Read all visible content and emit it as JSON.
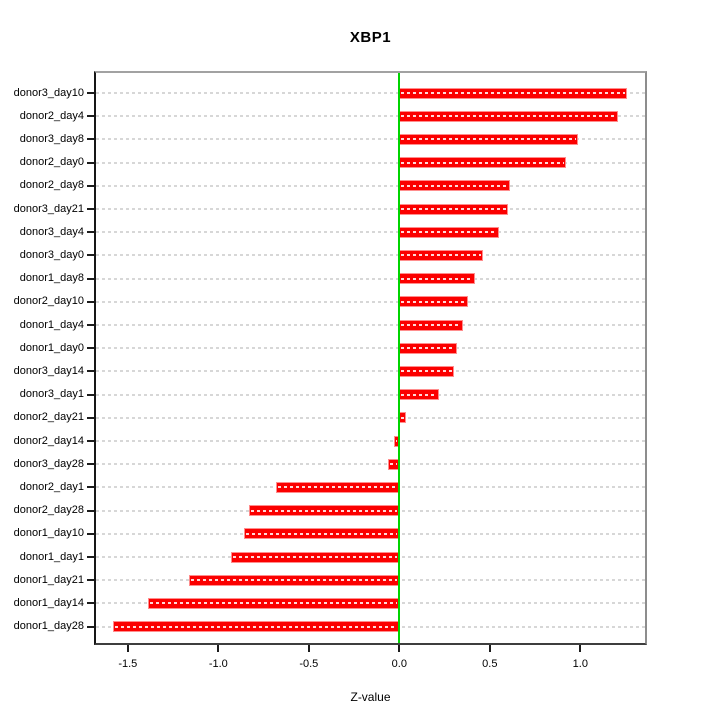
{
  "chart_data": {
    "type": "bar",
    "orientation": "horizontal",
    "title": "XBP1",
    "xlabel": "Z-value",
    "ylabel": "",
    "categories": [
      "donor3_day10",
      "donor2_day4",
      "donor3_day8",
      "donor2_day0",
      "donor2_day8",
      "donor3_day21",
      "donor3_day4",
      "donor3_day0",
      "donor1_day8",
      "donor2_day10",
      "donor1_day4",
      "donor1_day0",
      "donor3_day14",
      "donor3_day1",
      "donor2_day21",
      "donor2_day14",
      "donor3_day28",
      "donor2_day1",
      "donor2_day28",
      "donor1_day10",
      "donor1_day1",
      "donor1_day21",
      "donor1_day14",
      "donor1_day28"
    ],
    "values": [
      1.26,
      1.21,
      0.99,
      0.92,
      0.61,
      0.6,
      0.55,
      0.46,
      0.42,
      0.38,
      0.35,
      0.32,
      0.3,
      0.22,
      0.04,
      -0.03,
      -0.06,
      -0.68,
      -0.83,
      -0.86,
      -0.93,
      -1.16,
      -1.39,
      -1.58
    ],
    "xlim": [
      -1.69,
      1.37
    ],
    "xticks": [
      -1.5,
      -1.0,
      -0.5,
      0.0,
      0.5,
      1.0
    ],
    "xtick_labels": [
      "-1.5",
      "-1.0",
      "-0.5",
      "0.0",
      "0.5",
      "1.0"
    ],
    "grid": "dashed horizontal line per category, full plot width",
    "legend": "none",
    "colors": {
      "bar": "#fb0000",
      "bar_border": "#ff8d8d",
      "zero_line": "#00d400",
      "grid_line": "#d7d7d7",
      "plot_border": "#555555",
      "background": "#ffffff",
      "text": "#000000"
    }
  }
}
